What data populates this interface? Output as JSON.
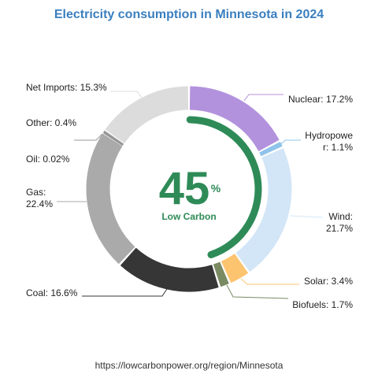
{
  "chart_data": {
    "type": "pie",
    "title": "Electricity consumption in Minnesota in 2024",
    "slices": [
      {
        "name": "Nuclear",
        "value": 17.2,
        "text": "Nuclear: 17.2%",
        "color": "#b392dd",
        "low_carbon": true
      },
      {
        "name": "Hydropower",
        "value": 1.1,
        "text": "Hydropowe\nr: 1.1%",
        "color": "#8fc3ea",
        "low_carbon": true
      },
      {
        "name": "Wind",
        "value": 21.7,
        "text": "Wind:\n21.7%",
        "color": "#d3e6f7",
        "low_carbon": true
      },
      {
        "name": "Solar",
        "value": 3.4,
        "text": "Solar: 3.4%",
        "color": "#fdc470",
        "low_carbon": true
      },
      {
        "name": "Biofuels",
        "value": 1.7,
        "text": "Biofuels: 1.7%",
        "color": "#7a8a63",
        "low_carbon": true
      },
      {
        "name": "Coal",
        "value": 16.6,
        "text": "Coal: 16.6%",
        "color": "#363636",
        "low_carbon": false
      },
      {
        "name": "Gas",
        "value": 22.4,
        "text": "Gas:\n22.4%",
        "color": "#aaaaaa",
        "low_carbon": false
      },
      {
        "name": "Oil",
        "value": 0.02,
        "text": "Oil: 0.02%",
        "color": "#7a7a7a",
        "low_carbon": false
      },
      {
        "name": "Other",
        "value": 0.4,
        "text": "Other: 0.4%",
        "color": "#999999",
        "low_carbon": false
      },
      {
        "name": "Net Imports",
        "value": 15.3,
        "text": "Net Imports: 15.3%",
        "color": "#dcdcdc",
        "low_carbon": false
      }
    ],
    "center": {
      "value": "45",
      "unit": "%",
      "label": "Low Carbon",
      "color": "#2e8b57"
    }
  },
  "source": "https://lowcarbonpower.org/region/Minnesota"
}
